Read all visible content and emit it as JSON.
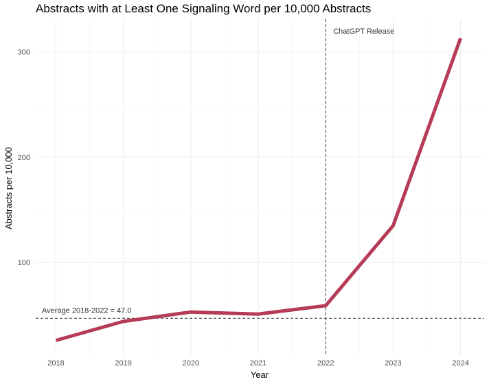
{
  "chart_data": {
    "type": "line",
    "title": "Abstracts with at Least One Signaling Word per 10,000 Abstracts",
    "xlabel": "Year",
    "ylabel": "Abstracts per 10,000",
    "x": [
      2018,
      2019,
      2020,
      2021,
      2022,
      2023,
      2024
    ],
    "series": [
      {
        "values": [
          26,
          44,
          53,
          51,
          59,
          135,
          313
        ]
      }
    ],
    "xlim": [
      2017.7,
      2024.35
    ],
    "ylim": [
      12,
      331
    ],
    "yticks": [
      100,
      200,
      300
    ],
    "ytick_labels": [
      "100",
      "200",
      "300"
    ],
    "xtick_labels": [
      "2018",
      "2019",
      "2020",
      "2021",
      "2022",
      "2023",
      "2024"
    ],
    "grid": true,
    "line_color": "#b53b56",
    "annotations": {
      "hline_value": 47.0,
      "hline_label": "Average 2018-2022 = 47.0",
      "vline_value": 2022,
      "vline_label": "ChatGPT Release"
    }
  }
}
